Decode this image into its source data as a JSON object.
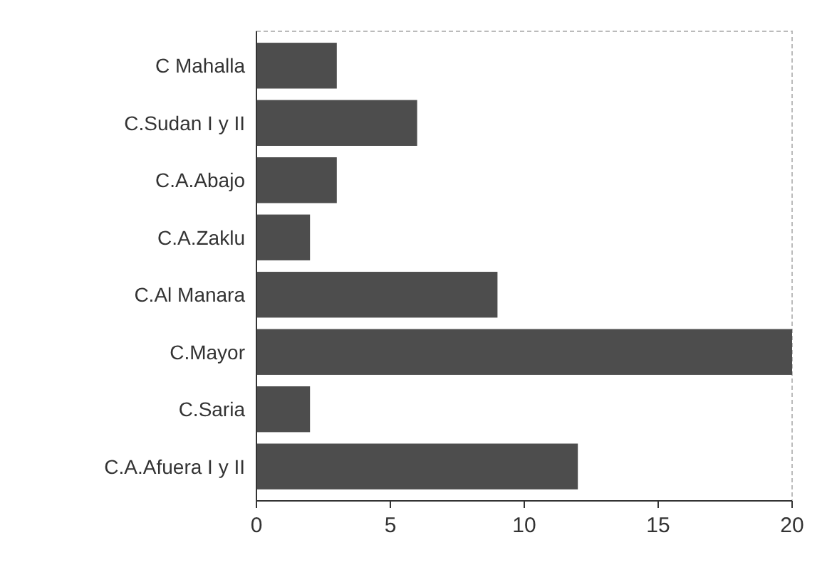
{
  "chart_data": {
    "type": "bar",
    "orientation": "horizontal",
    "categories": [
      "C Mahalla",
      "C.Sudan I y II",
      "C.A.Abajo",
      "C.A.Zaklu",
      "C.Al Manara",
      "C.Mayor",
      "C.Saria",
      "C.A.Afuera I y II"
    ],
    "values": [
      3,
      6,
      3,
      2,
      9,
      20,
      2,
      12
    ],
    "color": "#4d4d4d",
    "xlim": [
      0,
      20
    ],
    "xticks": [
      0,
      5,
      10,
      15,
      20
    ],
    "grid": false
  }
}
